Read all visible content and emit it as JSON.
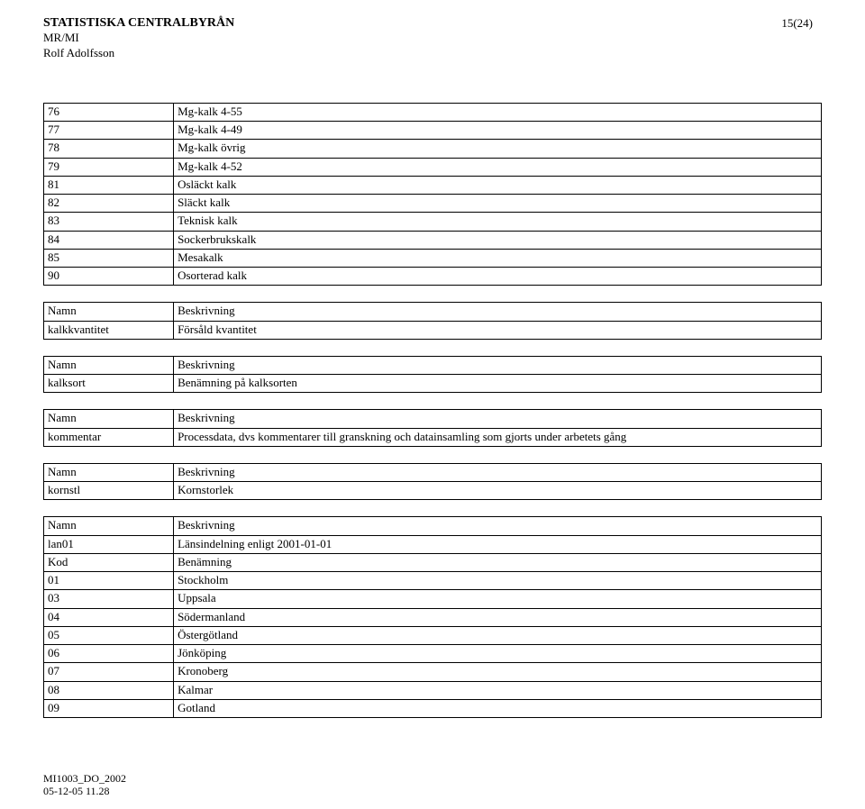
{
  "header": {
    "org": "STATISTISKA CENTRALBYRÅN",
    "dept": "MR/MI",
    "person": "Rolf Adolfsson",
    "page_indicator": "15(24)"
  },
  "table_top": {
    "rows": [
      [
        "76",
        "Mg-kalk 4-55"
      ],
      [
        "77",
        "Mg-kalk 4-49"
      ],
      [
        "78",
        "Mg-kalk övrig"
      ],
      [
        "79",
        "Mg-kalk 4-52"
      ],
      [
        "81",
        "Osläckt kalk"
      ],
      [
        "82",
        "Släckt kalk"
      ],
      [
        "83",
        "Teknisk kalk"
      ],
      [
        "84",
        "Sockerbrukskalk"
      ],
      [
        "85",
        "Mesakalk"
      ],
      [
        "90",
        "Osorterad kalk"
      ]
    ]
  },
  "pair_tables": [
    {
      "head": [
        "Namn",
        "Beskrivning"
      ],
      "row": [
        "kalkkvantitet",
        "Försåld kvantitet"
      ]
    },
    {
      "head": [
        "Namn",
        "Beskrivning"
      ],
      "row": [
        "kalksort",
        "Benämning på kalksorten"
      ]
    },
    {
      "head": [
        "Namn",
        "Beskrivning"
      ],
      "row": [
        "kommentar",
        "Processdata, dvs kommentarer till granskning och datainsamling som gjorts under arbetets gång"
      ]
    },
    {
      "head": [
        "Namn",
        "Beskrivning"
      ],
      "row": [
        "kornstl",
        "Kornstorlek"
      ]
    }
  ],
  "lan_table": {
    "head": [
      "Namn",
      "Beskrivning"
    ],
    "title_row": [
      "lan01",
      "Länsindelning enligt 2001-01-01"
    ],
    "sub_head": [
      "Kod",
      "Benämning"
    ],
    "rows": [
      [
        "01",
        "Stockholm"
      ],
      [
        "03",
        "Uppsala"
      ],
      [
        "04",
        "Södermanland"
      ],
      [
        "05",
        "Östergötland"
      ],
      [
        "06",
        "Jönköping"
      ],
      [
        "07",
        "Kronoberg"
      ],
      [
        "08",
        "Kalmar"
      ],
      [
        "09",
        "Gotland"
      ]
    ]
  },
  "footer": {
    "line1": "MI1003_DO_2002",
    "line2": "05-12-05 11.28"
  }
}
